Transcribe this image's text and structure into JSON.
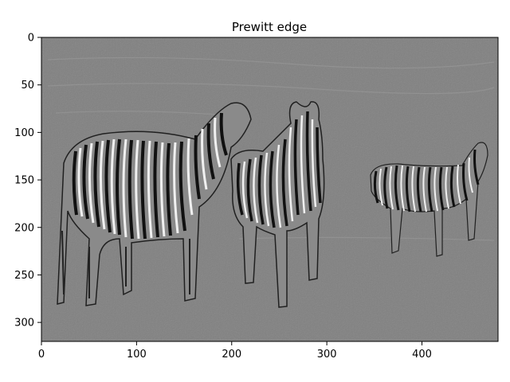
{
  "chart_data": {
    "type": "image",
    "title": "Prewitt edge",
    "xlabel": "",
    "ylabel": "",
    "xlim": [
      0,
      480
    ],
    "ylim": [
      320,
      0
    ],
    "xticks": [
      0,
      100,
      200,
      300,
      400
    ],
    "yticks": [
      0,
      50,
      100,
      150,
      200,
      250,
      300
    ],
    "grid": false,
    "colormap": "gray",
    "image_content": "edge-filtered photograph of three zebras standing in a field",
    "colors": {
      "background": "#808080",
      "edge_light": "#f2f2f2",
      "edge_dark": "#1a1a1a"
    }
  }
}
